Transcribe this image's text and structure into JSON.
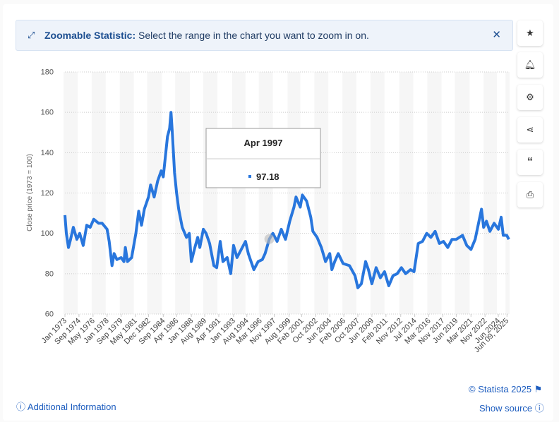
{
  "banner": {
    "title": "Zoomable Statistic:",
    "text": "Select the range in the chart you want to zoom in on."
  },
  "chart_data": {
    "type": "line",
    "y_label": "Close price (1973 = 100)",
    "x": [
      "1973-01",
      "1973-03",
      "1973-06",
      "1973-09",
      "1974-01",
      "1974-06",
      "1974-10",
      "1975-03",
      "1975-08",
      "1976-01",
      "1976-06",
      "1977-01",
      "1977-06",
      "1978-01",
      "1978-04",
      "1978-08",
      "1978-11",
      "1979-03",
      "1979-09",
      "1980-01",
      "1980-03",
      "1980-06",
      "1980-12",
      "1981-06",
      "1981-10",
      "1982-02",
      "1982-06",
      "1982-12",
      "1983-03",
      "1983-08",
      "1984-01",
      "1984-06",
      "1984-09",
      "1984-12",
      "1985-03",
      "1985-06",
      "1985-08",
      "1985-10",
      "1986-01",
      "1986-04",
      "1986-07",
      "1986-12",
      "1987-06",
      "1987-10",
      "1988-01",
      "1988-06",
      "1988-10",
      "1989-01",
      "1989-06",
      "1989-10",
      "1990-03",
      "1990-09",
      "1991-01",
      "1991-06",
      "1991-10",
      "1992-04",
      "1992-09",
      "1993-01",
      "1993-06",
      "1993-12",
      "1994-06",
      "1994-10",
      "1995-01",
      "1995-06",
      "1995-12",
      "1996-06",
      "1996-10",
      "1997-04",
      "1997-09",
      "1998-03",
      "1998-09",
      "1999-03",
      "1999-09",
      "2000-03",
      "2000-06",
      "2000-12",
      "2001-03",
      "2001-09",
      "2002-03",
      "2002-06",
      "2002-12",
      "2003-06",
      "2003-12",
      "2004-06",
      "2004-09",
      "2005-01",
      "2005-06",
      "2006-01",
      "2006-10",
      "2007-06",
      "2007-10",
      "2008-03",
      "2008-09",
      "2009-01",
      "2009-06",
      "2009-12",
      "2010-06",
      "2010-12",
      "2011-06",
      "2011-12",
      "2012-06",
      "2012-12",
      "2013-06",
      "2014-01",
      "2014-06",
      "2014-12",
      "2015-06",
      "2015-12",
      "2016-06",
      "2016-12",
      "2017-06",
      "2017-12",
      "2018-06",
      "2018-12",
      "2019-06",
      "2020-03",
      "2020-09",
      "2021-03",
      "2021-09",
      "2022-06",
      "2022-09",
      "2023-01",
      "2023-06",
      "2023-12",
      "2024-06",
      "2024-10",
      "2025-01",
      "2025-06",
      "2025-09"
    ],
    "series": [
      {
        "name": "Close price",
        "color": "#2876dd",
        "values": [
          109,
          100,
          93,
          97,
          103,
          97,
          100,
          94,
          104,
          103,
          107,
          105,
          105,
          102,
          96,
          84,
          90,
          87,
          88,
          86,
          93,
          86,
          88,
          100,
          111,
          104,
          112,
          118,
          124,
          118,
          126,
          131,
          128,
          138,
          148,
          152,
          160,
          149,
          130,
          120,
          112,
          103,
          98,
          100,
          86,
          93,
          98,
          93,
          102,
          100,
          95,
          84,
          83,
          96,
          86,
          88,
          80,
          94,
          88,
          92,
          96,
          90,
          87,
          82,
          86,
          87,
          90,
          97.18,
          100,
          96,
          102,
          97,
          106,
          113,
          118,
          113,
          119,
          116,
          108,
          101,
          98,
          93,
          86,
          90,
          82,
          86,
          90,
          85,
          84,
          79,
          73,
          75,
          86,
          82,
          75,
          83,
          78,
          81,
          74,
          79,
          80,
          83,
          80,
          82,
          81,
          95,
          96,
          100,
          98,
          101,
          95,
          96,
          93,
          97,
          97,
          99,
          94,
          92,
          97,
          112,
          103,
          106,
          101,
          105,
          102,
          108,
          99,
          99,
          97
        ]
      }
    ],
    "xlim": [
      "1973-01",
      "2025-10"
    ],
    "xticks": [
      {
        "value": "1973-01",
        "label": "Jan 1973"
      },
      {
        "value": "1974-09",
        "label": "Sep 1974"
      },
      {
        "value": "1976-05",
        "label": "May 1976"
      },
      {
        "value": "1978-01",
        "label": "Jan 1978"
      },
      {
        "value": "1979-09",
        "label": "Sep 1979"
      },
      {
        "value": "1981-05",
        "label": "May 1981"
      },
      {
        "value": "1982-12",
        "label": "Dec 1982"
      },
      {
        "value": "1984-09",
        "label": "Sep 1984"
      },
      {
        "value": "1986-04",
        "label": "Apr 1986"
      },
      {
        "value": "1988-01",
        "label": "Jan 1988"
      },
      {
        "value": "1989-08",
        "label": "Aug 1989"
      },
      {
        "value": "1991-04",
        "label": "Apr 1991"
      },
      {
        "value": "1993-01",
        "label": "Jan 1993"
      },
      {
        "value": "1994-08",
        "label": "Aug 1994"
      },
      {
        "value": "1996-03",
        "label": "Mar 1996"
      },
      {
        "value": "1997-11",
        "label": "Nov 1997"
      },
      {
        "value": "1999-08",
        "label": "Aug 1999"
      },
      {
        "value": "2001-02",
        "label": "Feb 2001"
      },
      {
        "value": "2002-10",
        "label": "Oct 2002"
      },
      {
        "value": "2004-06",
        "label": "Jun 2004"
      },
      {
        "value": "2006-02",
        "label": "Feb 2006"
      },
      {
        "value": "2007-10",
        "label": "Oct 2007"
      },
      {
        "value": "2009-06",
        "label": "Jun 2009"
      },
      {
        "value": "2011-02",
        "label": "Feb 2011"
      },
      {
        "value": "2012-11",
        "label": "Nov 2012"
      },
      {
        "value": "2014-07",
        "label": "Jul 2014"
      },
      {
        "value": "2016-03",
        "label": "Mar 2016"
      },
      {
        "value": "2017-11",
        "label": "Nov 2017"
      },
      {
        "value": "2019-06",
        "label": "Jun 2019"
      },
      {
        "value": "2021-03",
        "label": "Mar 2021"
      },
      {
        "value": "2022-11",
        "label": "Nov 2022"
      },
      {
        "value": "2024-06",
        "label": "Jun 2024"
      },
      {
        "value": "2025-06-09",
        "label": "Jun 09, 2025"
      }
    ],
    "ylim": [
      60,
      180
    ],
    "yticks": [
      60,
      80,
      100,
      120,
      140,
      160,
      180
    ],
    "grid": true,
    "tooltip": {
      "label": "Apr 1997",
      "value": 97.18
    }
  },
  "footer": {
    "copyright": "© Statista 2025",
    "info": "Additional Information",
    "source": "Show source"
  }
}
